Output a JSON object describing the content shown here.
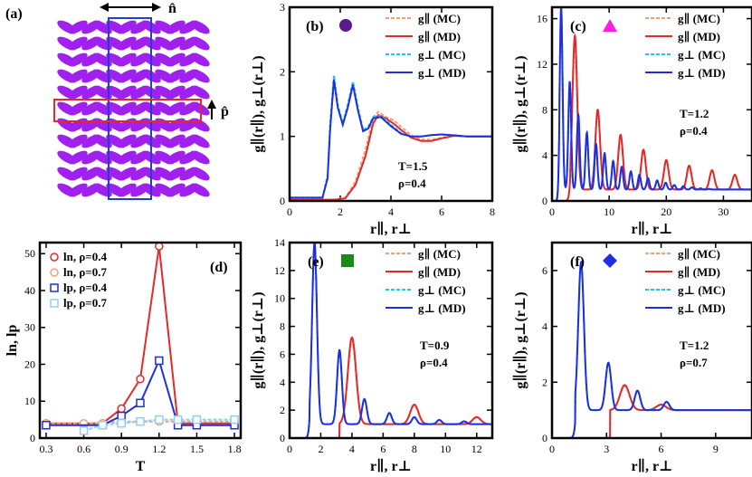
{
  "figure": {
    "panel_a": {
      "label": "(a)",
      "n_hat": "n̂",
      "p_hat": "p̂",
      "colors": {
        "particle": "#a020f0",
        "box_n": "#1f3ddb",
        "box_p": "#e32a2a"
      }
    }
  },
  "colors": {
    "g_par_mc": "#f0a07a",
    "g_par_md": "#e32a2a",
    "g_perp_mc": "#1ec8e8",
    "g_perp_md": "#1f2ee0",
    "ln_04": "#e32a2a",
    "ln_07": "#f0a07a",
    "lp_04": "#1f2ee0",
    "lp_07": "#8fd0f0"
  },
  "chart_data": [
    {
      "panel": "(b)",
      "type": "line",
      "marker": {
        "shape": "circle",
        "color": "#5b1a8c"
      },
      "annotation": [
        "T=1.5",
        "ρ=0.4"
      ],
      "ylabel": "g∥(r∥), g⊥(r⊥)",
      "xlabel": "r∥, r⊥",
      "xlim": [
        0,
        8
      ],
      "ylim": [
        0,
        3
      ],
      "xticks": [
        0,
        2,
        4,
        6,
        8
      ],
      "yticks": [
        0,
        1,
        2,
        3
      ],
      "legend": [
        "g∥ (MC)",
        "g∥ (MD)",
        "g⊥ (MC)",
        "g⊥ (MD)"
      ],
      "series": [
        {
          "name": "g∥ (MC)",
          "style": "dashed",
          "color": "#f0a07a",
          "x": [
            0,
            1.8,
            2.2,
            2.6,
            3.0,
            3.3,
            3.5,
            3.8,
            4.1,
            4.4,
            4.8,
            5.2,
            5.6,
            6.0,
            6.5,
            7.0,
            7.5,
            8.0
          ],
          "y": [
            0.02,
            0.02,
            0.05,
            0.3,
            0.8,
            1.3,
            1.38,
            1.3,
            1.25,
            1.15,
            1.02,
            0.95,
            0.95,
            0.98,
            1.02,
            1.0,
            1.0,
            1.0
          ]
        },
        {
          "name": "g∥ (MD)",
          "style": "solid",
          "color": "#e32a2a",
          "x": [
            0,
            1.8,
            2.2,
            2.6,
            3.0,
            3.3,
            3.5,
            3.8,
            4.1,
            4.4,
            4.8,
            5.2,
            5.6,
            6.0,
            6.5,
            7.0,
            7.5,
            8.0
          ],
          "y": [
            0.02,
            0.02,
            0.04,
            0.25,
            0.7,
            1.2,
            1.33,
            1.28,
            1.2,
            1.1,
            0.98,
            0.93,
            0.93,
            0.97,
            1.01,
            1.0,
            1.0,
            1.0
          ]
        },
        {
          "name": "g⊥ (MC)",
          "style": "dashed",
          "color": "#1ec8e8",
          "x": [
            0,
            1.3,
            1.5,
            1.6,
            1.75,
            1.9,
            2.1,
            2.3,
            2.5,
            2.7,
            2.9,
            3.1,
            3.3,
            3.6,
            4.0,
            4.4,
            4.8,
            5.2,
            5.6,
            6.0,
            7.0,
            8.0
          ],
          "y": [
            0.05,
            0.05,
            0.4,
            1.2,
            1.95,
            1.5,
            1.2,
            1.5,
            1.85,
            1.45,
            1.1,
            1.15,
            1.3,
            1.32,
            1.18,
            1.05,
            1.0,
            1.0,
            1.02,
            1.03,
            1.0,
            1.0
          ]
        },
        {
          "name": "g⊥ (MD)",
          "style": "solid",
          "color": "#1f2ee0",
          "x": [
            0,
            1.3,
            1.5,
            1.6,
            1.75,
            1.9,
            2.1,
            2.3,
            2.5,
            2.7,
            2.9,
            3.1,
            3.3,
            3.6,
            4.0,
            4.4,
            4.8,
            5.2,
            5.6,
            6.0,
            7.0,
            8.0
          ],
          "y": [
            0.05,
            0.05,
            0.35,
            1.1,
            1.88,
            1.45,
            1.18,
            1.45,
            1.8,
            1.4,
            1.08,
            1.12,
            1.28,
            1.3,
            1.16,
            1.04,
            1.0,
            1.0,
            1.02,
            1.03,
            1.0,
            1.0
          ]
        }
      ]
    },
    {
      "panel": "(c)",
      "type": "line",
      "marker": {
        "shape": "triangle",
        "color": "#ff1ee0"
      },
      "annotation": [
        "T=1.2",
        "ρ=0.4"
      ],
      "ylabel": "g∥(r∥), g⊥(r⊥)",
      "xlabel": "r∥, r⊥",
      "xlim": [
        0,
        35
      ],
      "ylim": [
        0,
        17
      ],
      "xticks": [
        0,
        10,
        20,
        30
      ],
      "yticks": [
        0,
        4,
        8,
        12,
        16
      ],
      "legend": [
        "g∥ (MC)",
        "g∥ (MD)",
        "g⊥ (MC)",
        "g⊥ (MD)"
      ],
      "peaks_par": [
        [
          4.0,
          14.5
        ],
        [
          8.0,
          8.0
        ],
        [
          12.0,
          5.8
        ],
        [
          16.0,
          4.5
        ],
        [
          20.0,
          3.6
        ],
        [
          24.0,
          3.1
        ],
        [
          28.0,
          2.7
        ],
        [
          32.0,
          2.3
        ]
      ],
      "peaks_perp": [
        [
          1.6,
          17.0
        ],
        [
          3.1,
          10.5
        ],
        [
          4.6,
          7.6
        ],
        [
          6.1,
          6.0
        ],
        [
          7.7,
          5.0
        ],
        [
          9.2,
          4.2
        ],
        [
          10.7,
          3.5
        ],
        [
          12.2,
          3.0
        ],
        [
          13.8,
          2.6
        ],
        [
          15.3,
          2.3
        ],
        [
          16.8,
          2.0
        ],
        [
          18.4,
          1.8
        ],
        [
          19.9,
          1.6
        ],
        [
          21.4,
          1.4
        ],
        [
          23.0,
          1.3
        ],
        [
          24.5,
          1.2
        ],
        [
          26.0,
          1.1
        ],
        [
          27.5,
          1.05
        ],
        [
          29.0,
          1.0
        ],
        [
          30.6,
          1.0
        ],
        [
          32.1,
          1.0
        ],
        [
          33.6,
          1.0
        ]
      ]
    },
    {
      "panel": "(d)",
      "type": "line",
      "xlabel": "T",
      "ylabel": "ln, lp",
      "xlim": [
        0.25,
        1.85
      ],
      "ylim": [
        0,
        53
      ],
      "xticks": [
        0.3,
        0.6,
        0.9,
        1.2,
        1.5,
        1.8
      ],
      "yticks": [
        0,
        10,
        20,
        30,
        40,
        50
      ],
      "legend": [
        "ln, ρ=0.4",
        "ln, ρ=0.7",
        "lp, ρ=0.4",
        "lp, ρ=0.7"
      ],
      "series": [
        {
          "name": "ln, ρ=0.4",
          "marker": "circle",
          "color": "#e32a2a",
          "x": [
            0.3,
            0.75,
            0.9,
            1.05,
            1.2,
            1.35,
            1.5,
            1.8
          ],
          "y": [
            4,
            4,
            8,
            16,
            52,
            4,
            4,
            4
          ]
        },
        {
          "name": "ln, ρ=0.7",
          "marker": "circle",
          "color": "#f0a07a",
          "dashed": true,
          "x": [
            0.3,
            0.6,
            0.75,
            0.9,
            1.05,
            1.2,
            1.35,
            1.5,
            1.8
          ],
          "y": [
            4,
            4,
            4,
            4.5,
            4.5,
            4.5,
            4.5,
            4.5,
            4.5
          ]
        },
        {
          "name": "lp, ρ=0.4",
          "marker": "square",
          "color": "#1f2ee0",
          "x": [
            0.3,
            0.75,
            0.9,
            1.05,
            1.2,
            1.35,
            1.5,
            1.8
          ],
          "y": [
            3.5,
            3.5,
            6,
            9.5,
            21,
            3.5,
            3.5,
            3.5
          ]
        },
        {
          "name": "lp, ρ=0.7",
          "marker": "square",
          "color": "#8fd0f0",
          "dashed": true,
          "x": [
            0.6,
            0.75,
            0.9,
            1.05,
            1.2,
            1.35,
            1.5,
            1.8
          ],
          "y": [
            2,
            3.5,
            4,
            4.5,
            5,
            5,
            5,
            5
          ]
        }
      ]
    },
    {
      "panel": "(e)",
      "type": "line",
      "marker": {
        "shape": "square",
        "color": "#1a8a1a"
      },
      "annotation": [
        "T=0.9",
        "ρ=0.4"
      ],
      "ylabel": "g∥(r∥), g⊥(r⊥)",
      "xlabel": "r∥, r⊥",
      "xlim": [
        0,
        13
      ],
      "ylim": [
        0,
        14
      ],
      "xticks": [
        0,
        2,
        4,
        6,
        8,
        10,
        12
      ],
      "yticks": [
        0,
        2,
        4,
        6,
        8,
        10,
        12,
        14
      ],
      "legend": [
        "g∥ (MC)",
        "g∥ (MD)",
        "g⊥ (MC)",
        "g⊥ (MD)"
      ],
      "peaks_par": [
        [
          4.0,
          7.2
        ],
        [
          8.0,
          2.4
        ],
        [
          12.0,
          1.5
        ]
      ],
      "peaks_perp": [
        [
          1.6,
          14.0
        ],
        [
          3.2,
          6.3
        ],
        [
          4.8,
          2.8
        ],
        [
          6.4,
          1.8
        ],
        [
          8.0,
          1.5
        ],
        [
          9.6,
          1.3
        ],
        [
          11.2,
          1.2
        ]
      ]
    },
    {
      "panel": "(f)",
      "type": "line",
      "marker": {
        "shape": "diamond",
        "color": "#1f2ee0"
      },
      "annotation": [
        "T=1.2",
        "ρ=0.7"
      ],
      "ylabel": "g∥(r∥), g⊥(r⊥)",
      "xlabel": "r∥, r⊥",
      "xlim": [
        0,
        11
      ],
      "ylim": [
        0,
        7
      ],
      "xticks": [
        0,
        3,
        6,
        9
      ],
      "yticks": [
        0,
        2,
        4,
        6
      ],
      "legend": [
        "g∥ (MC)",
        "g∥ (MD)",
        "g⊥ (MC)",
        "g⊥ (MD)"
      ],
      "peaks_par": [
        [
          4.0,
          1.9
        ],
        [
          6.0,
          1.2
        ]
      ],
      "peaks_perp": [
        [
          1.6,
          6.3
        ],
        [
          3.1,
          2.7
        ],
        [
          4.7,
          1.7
        ],
        [
          6.3,
          1.3
        ]
      ]
    }
  ]
}
